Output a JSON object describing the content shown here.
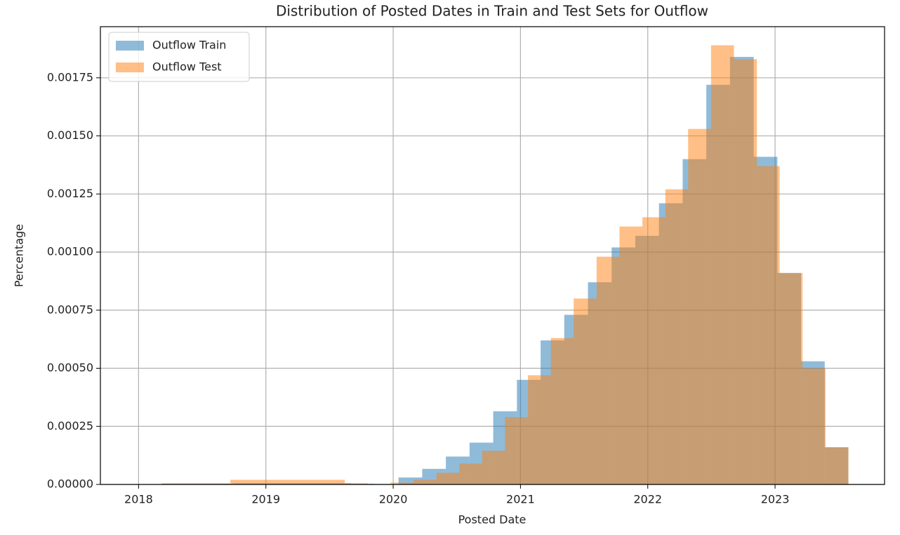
{
  "chart_data": {
    "type": "histogram",
    "title": "Distribution of Posted Dates in Train and Test Sets for Outflow",
    "x_label": "Posted Date",
    "y_label": "Percentage",
    "xlim": [
      2017.7,
      2023.86
    ],
    "xticks": [
      2018,
      2019,
      2020,
      2021,
      2022,
      2023
    ],
    "ylim": [
      0,
      0.00197
    ],
    "yticks": [
      {
        "value": 0,
        "label": "0.00000"
      },
      {
        "value": 0.00025,
        "label": "0.00025"
      },
      {
        "value": 0.0005,
        "label": "0.00050"
      },
      {
        "value": 0.00075,
        "label": "0.00075"
      },
      {
        "value": 0.001,
        "label": "0.00100"
      },
      {
        "value": 0.00125,
        "label": "0.00125"
      },
      {
        "value": 0.0015,
        "label": "0.00150"
      },
      {
        "value": 0.00175,
        "label": "0.00175"
      }
    ],
    "grid": true,
    "legend": "upper left",
    "opacity": 0.5,
    "series": [
      {
        "name": "Outflow Train",
        "color": "#1f77b4",
        "bins": [
          2018.182,
          2018.368,
          2018.554,
          2018.74,
          2018.926,
          2019.112,
          2019.298,
          2019.484,
          2019.67,
          2019.856,
          2020.042,
          2020.228,
          2020.414,
          2020.6,
          2020.786,
          2020.972,
          2021.158,
          2021.344,
          2021.53,
          2021.716,
          2021.902,
          2022.088,
          2022.274,
          2022.46,
          2022.646,
          2022.832,
          2023.018,
          2023.204,
          2023.39,
          2023.576
        ],
        "values": [
          3e-06,
          3e-06,
          3e-06,
          5e-06,
          5e-06,
          5e-06,
          5e-06,
          5e-06,
          3e-06,
          2e-06,
          3e-05,
          6.7e-05,
          0.00012,
          0.00018,
          0.000315,
          0.00045,
          0.00062,
          0.00073,
          0.00087,
          0.00102,
          0.00107,
          0.00121,
          0.0014,
          0.00172,
          0.00184,
          0.00141,
          0.00091,
          0.00053,
          0.00016
        ]
      },
      {
        "name": "Outflow Test",
        "color": "#ff7f0e",
        "bins": [
          2018.182,
          2018.362,
          2018.542,
          2018.721,
          2018.901,
          2019.081,
          2019.261,
          2019.441,
          2019.62,
          2019.8,
          2019.98,
          2020.16,
          2020.34,
          2020.519,
          2020.699,
          2020.879,
          2021.059,
          2021.239,
          2021.418,
          2021.598,
          2021.778,
          2021.958,
          2022.138,
          2022.317,
          2022.497,
          2022.677,
          2022.857,
          2023.036,
          2023.216,
          2023.396,
          2023.576
        ],
        "values": [
          5e-06,
          5e-06,
          5e-06,
          2e-05,
          2e-05,
          2e-05,
          2e-05,
          2e-05,
          5e-06,
          0,
          8e-06,
          2e-05,
          5e-05,
          9e-05,
          0.000145,
          0.00029,
          0.00047,
          0.00063,
          0.0008,
          0.00098,
          0.00111,
          0.00115,
          0.00127,
          0.00153,
          0.00189,
          0.00183,
          0.00137,
          0.00091,
          0.0005,
          0.00016
        ]
      }
    ]
  }
}
